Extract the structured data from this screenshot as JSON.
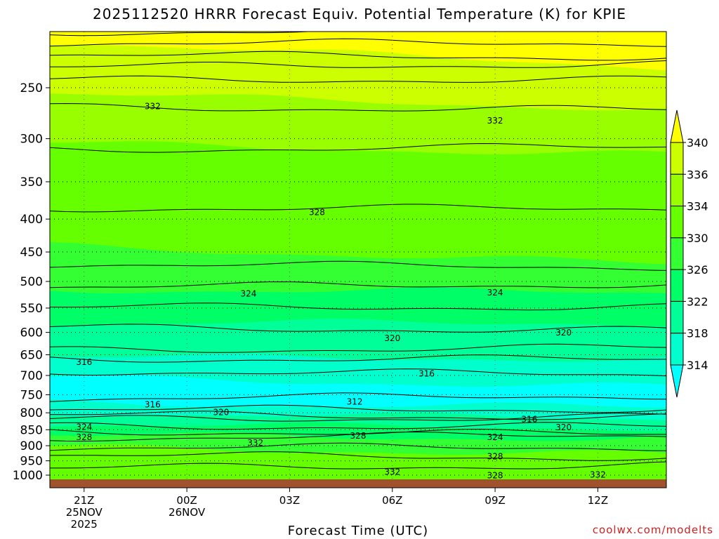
{
  "chart_data": {
    "type": "contour",
    "title": "2025112520 HRRR Forecast Equiv. Potential Temperature (K) for KPIE",
    "xlabel": "Forecast Time (UTC)",
    "ylabel": "",
    "credit": "coolwx.com/modelts",
    "x_ticks": [
      {
        "hour": 1,
        "lines": [
          "21Z",
          "25NOV",
          "2025"
        ]
      },
      {
        "hour": 4,
        "lines": [
          "00Z",
          "26NOV"
        ]
      },
      {
        "hour": 7,
        "lines": [
          "03Z"
        ]
      },
      {
        "hour": 10,
        "lines": [
          "06Z"
        ]
      },
      {
        "hour": 13,
        "lines": [
          "09Z"
        ]
      },
      {
        "hour": 16,
        "lines": [
          "12Z"
        ]
      }
    ],
    "xlim": [
      0,
      18
    ],
    "y_ticks": [
      250,
      300,
      350,
      400,
      450,
      500,
      550,
      600,
      650,
      700,
      750,
      800,
      850,
      900,
      950,
      1000
    ],
    "ylim": [
      1010,
      200
    ],
    "yscale": "log-pressure",
    "colorbar": {
      "levels": [
        314,
        318,
        322,
        326,
        330,
        334,
        336,
        340
      ],
      "labels": [
        "314",
        "318",
        "322",
        "326",
        "330",
        "334",
        "336",
        "340"
      ],
      "colors": [
        "#00ffff",
        "#00ffcc",
        "#00ff99",
        "#00ff66",
        "#33ff33",
        "#66ff00",
        "#99ff00",
        "#ccff00",
        "#ffff00"
      ]
    },
    "contour_labels": [
      {
        "value": "332",
        "hour": 3.0,
        "p": 267
      },
      {
        "value": "332",
        "hour": 13.0,
        "p": 281
      },
      {
        "value": "328",
        "hour": 7.8,
        "p": 390
      },
      {
        "value": "324",
        "hour": 5.8,
        "p": 522
      },
      {
        "value": "324",
        "hour": 13.0,
        "p": 520
      },
      {
        "value": "320",
        "hour": 10.0,
        "p": 612
      },
      {
        "value": "320",
        "hour": 15.0,
        "p": 600
      },
      {
        "value": "316",
        "hour": 1.0,
        "p": 667
      },
      {
        "value": "316",
        "hour": 11.0,
        "p": 695
      },
      {
        "value": "312",
        "hour": 8.9,
        "p": 768
      },
      {
        "value": "316",
        "hour": 3.0,
        "p": 776
      },
      {
        "value": "320",
        "hour": 5.0,
        "p": 798
      },
      {
        "value": "316",
        "hour": 14.0,
        "p": 818
      },
      {
        "value": "324",
        "hour": 1.0,
        "p": 841
      },
      {
        "value": "320",
        "hour": 15.0,
        "p": 842
      },
      {
        "value": "328",
        "hour": 1.0,
        "p": 872
      },
      {
        "value": "328",
        "hour": 9.0,
        "p": 868
      },
      {
        "value": "324",
        "hour": 13.0,
        "p": 872
      },
      {
        "value": "332",
        "hour": 6.0,
        "p": 890
      },
      {
        "value": "328",
        "hour": 13.0,
        "p": 935
      },
      {
        "value": "332",
        "hour": 10.0,
        "p": 988
      },
      {
        "value": "332",
        "hour": 16.0,
        "p": 997
      },
      {
        "value": "328",
        "hour": 13.0,
        "p": 1000
      }
    ],
    "bands": [
      {
        "color": "#ffff00",
        "p_left": 200,
        "p_right": 200
      },
      {
        "color": "#ccff00",
        "p_left": 212,
        "p_right": 232
      },
      {
        "color": "#99ff00",
        "p_left": 255,
        "p_right": 270
      },
      {
        "color": "#66ff00",
        "p_left": 305,
        "p_right": 318
      },
      {
        "color": "#33ff33",
        "p_left": 440,
        "p_right": 470
      },
      {
        "color": "#00ff66",
        "p_left": 515,
        "p_right": 520
      },
      {
        "color": "#00ff99",
        "p_left": 580,
        "p_right": 580
      },
      {
        "color": "#00ffcc",
        "p_left": 655,
        "p_right": 660
      },
      {
        "color": "#00ffff",
        "p_left": 705,
        "p_right": 730
      },
      {
        "color": "#00ffcc",
        "p_left": 772,
        "p_right": 785
      },
      {
        "color": "#00ff99",
        "p_left": 800,
        "p_right": 818
      },
      {
        "color": "#00ff66",
        "p_left": 835,
        "p_right": 845
      },
      {
        "color": "#33ff33",
        "p_left": 868,
        "p_right": 878
      },
      {
        "color": "#66ff00",
        "p_left": 905,
        "p_right": 930
      }
    ],
    "contours_p": [
      205,
      213,
      222,
      232,
      243,
      268,
      312,
      385,
      470,
      510,
      548,
      590,
      640,
      660,
      690,
      760,
      790,
      805,
      820,
      840,
      855,
      875,
      905,
      930,
      975
    ]
  }
}
